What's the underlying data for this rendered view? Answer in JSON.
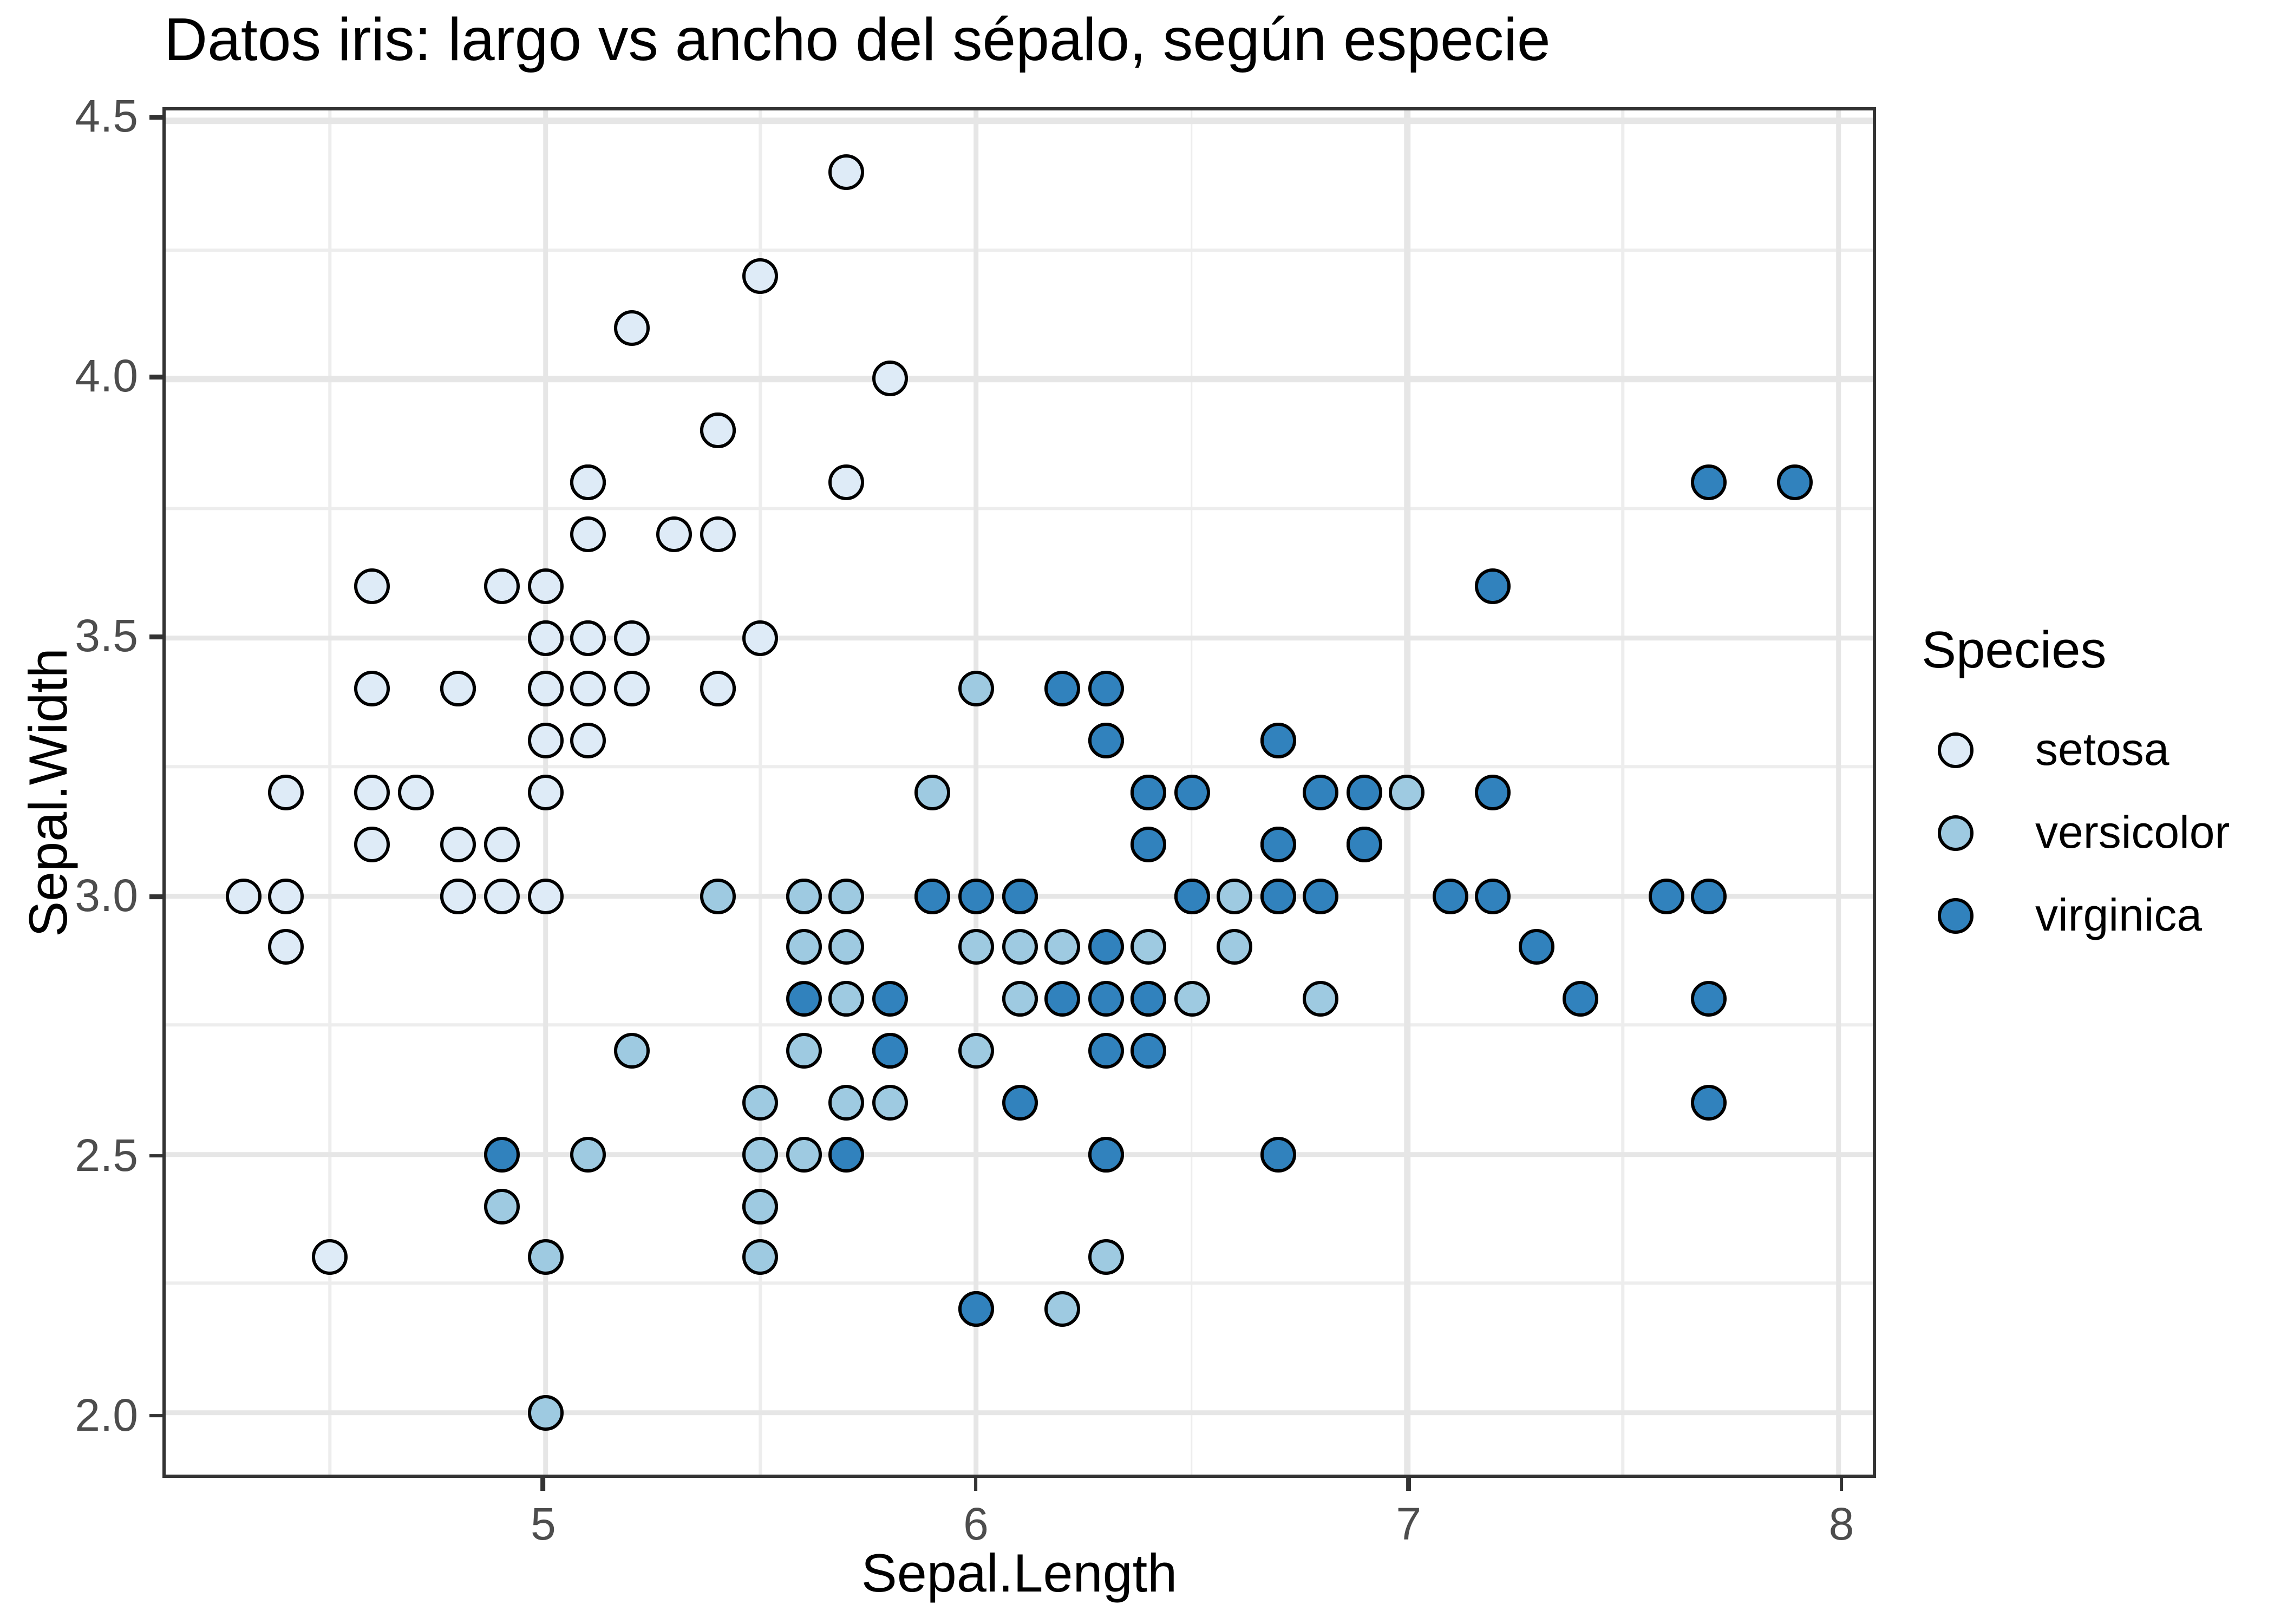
{
  "chart_data": {
    "type": "scatter",
    "title": "Datos iris: largo vs ancho del sépalo, según especie",
    "xlabel": "Sepal.Length",
    "ylabel": "Sepal.Width",
    "xlim": [
      4.12,
      8.08
    ],
    "ylim": [
      1.88,
      4.52
    ],
    "x_ticks": [
      5,
      6,
      7,
      8
    ],
    "x_tick_labels": [
      "5",
      "6",
      "7",
      "8"
    ],
    "y_ticks": [
      2.0,
      2.5,
      3.0,
      3.5,
      4.0,
      4.5
    ],
    "y_tick_labels": [
      "2.0",
      "2.5",
      "3.0",
      "3.5",
      "4.0",
      "4.5"
    ],
    "x_minor_ticks": [
      4.5,
      5.5,
      6.5,
      7.5
    ],
    "y_minor_ticks": [
      2.25,
      2.75,
      3.25,
      3.75,
      4.25
    ],
    "grid": true,
    "legend_position": "right",
    "series": [
      {
        "name": "setosa",
        "fill": "#DEEBF7",
        "points": [
          [
            5.1,
            3.5
          ],
          [
            4.9,
            3.0
          ],
          [
            4.7,
            3.2
          ],
          [
            4.6,
            3.1
          ],
          [
            5.0,
            3.6
          ],
          [
            5.4,
            3.9
          ],
          [
            4.6,
            3.4
          ],
          [
            5.0,
            3.4
          ],
          [
            4.4,
            2.9
          ],
          [
            4.9,
            3.1
          ],
          [
            5.4,
            3.7
          ],
          [
            4.8,
            3.4
          ],
          [
            4.8,
            3.0
          ],
          [
            4.3,
            3.0
          ],
          [
            5.8,
            4.0
          ],
          [
            5.7,
            4.4
          ],
          [
            5.4,
            3.9
          ],
          [
            5.1,
            3.5
          ],
          [
            5.7,
            3.8
          ],
          [
            5.1,
            3.8
          ],
          [
            5.4,
            3.4
          ],
          [
            5.1,
            3.7
          ],
          [
            4.6,
            3.6
          ],
          [
            5.1,
            3.3
          ],
          [
            4.8,
            3.4
          ],
          [
            5.0,
            3.0
          ],
          [
            5.0,
            3.4
          ],
          [
            5.2,
            3.5
          ],
          [
            5.2,
            3.4
          ],
          [
            4.7,
            3.2
          ],
          [
            4.8,
            3.1
          ],
          [
            5.4,
            3.4
          ],
          [
            5.2,
            4.1
          ],
          [
            5.5,
            4.2
          ],
          [
            4.9,
            3.1
          ],
          [
            5.0,
            3.2
          ],
          [
            5.5,
            3.5
          ],
          [
            4.9,
            3.6
          ],
          [
            4.4,
            3.0
          ],
          [
            5.1,
            3.4
          ],
          [
            5.0,
            3.5
          ],
          [
            4.5,
            2.3
          ],
          [
            4.4,
            3.2
          ],
          [
            5.0,
            3.5
          ],
          [
            5.1,
            3.8
          ],
          [
            4.8,
            3.0
          ],
          [
            5.1,
            3.8
          ],
          [
            4.6,
            3.2
          ],
          [
            5.3,
            3.7
          ],
          [
            5.0,
            3.3
          ]
        ]
      },
      {
        "name": "versicolor",
        "fill": "#9ECAE1",
        "points": [
          [
            7.0,
            3.2
          ],
          [
            6.4,
            3.2
          ],
          [
            6.9,
            3.1
          ],
          [
            5.5,
            2.3
          ],
          [
            6.5,
            2.8
          ],
          [
            5.7,
            2.8
          ],
          [
            6.3,
            3.3
          ],
          [
            4.9,
            2.4
          ],
          [
            6.6,
            2.9
          ],
          [
            5.2,
            2.7
          ],
          [
            5.0,
            2.0
          ],
          [
            5.9,
            3.0
          ],
          [
            6.0,
            2.2
          ],
          [
            6.1,
            2.9
          ],
          [
            5.6,
            2.9
          ],
          [
            6.7,
            3.1
          ],
          [
            5.6,
            3.0
          ],
          [
            5.8,
            2.7
          ],
          [
            6.2,
            2.2
          ],
          [
            5.6,
            2.5
          ],
          [
            5.9,
            3.2
          ],
          [
            6.1,
            2.8
          ],
          [
            6.3,
            2.5
          ],
          [
            6.1,
            2.8
          ],
          [
            6.4,
            2.9
          ],
          [
            6.6,
            3.0
          ],
          [
            6.8,
            2.8
          ],
          [
            6.7,
            3.0
          ],
          [
            6.0,
            2.9
          ],
          [
            5.7,
            2.6
          ],
          [
            5.5,
            2.4
          ],
          [
            5.5,
            2.4
          ],
          [
            5.8,
            2.7
          ],
          [
            6.0,
            2.7
          ],
          [
            5.4,
            3.0
          ],
          [
            6.0,
            3.4
          ],
          [
            6.7,
            3.1
          ],
          [
            6.3,
            2.3
          ],
          [
            5.6,
            3.0
          ],
          [
            5.5,
            2.5
          ],
          [
            5.5,
            2.6
          ],
          [
            6.1,
            3.0
          ],
          [
            5.8,
            2.6
          ],
          [
            5.0,
            2.3
          ],
          [
            5.6,
            2.7
          ],
          [
            5.7,
            3.0
          ],
          [
            5.7,
            2.9
          ],
          [
            6.2,
            2.9
          ],
          [
            5.1,
            2.5
          ],
          [
            5.7,
            2.8
          ]
        ]
      },
      {
        "name": "virginica",
        "fill": "#3182BD",
        "points": [
          [
            6.3,
            3.3
          ],
          [
            5.8,
            2.7
          ],
          [
            7.1,
            3.0
          ],
          [
            6.3,
            2.9
          ],
          [
            6.5,
            3.0
          ],
          [
            7.6,
            3.0
          ],
          [
            4.9,
            2.5
          ],
          [
            7.3,
            2.9
          ],
          [
            6.7,
            2.5
          ],
          [
            7.2,
            3.6
          ],
          [
            6.5,
            3.2
          ],
          [
            6.4,
            2.7
          ],
          [
            6.8,
            3.0
          ],
          [
            5.7,
            2.5
          ],
          [
            5.8,
            2.8
          ],
          [
            6.4,
            3.2
          ],
          [
            6.5,
            3.0
          ],
          [
            7.7,
            3.8
          ],
          [
            7.7,
            2.6
          ],
          [
            6.0,
            2.2
          ],
          [
            6.9,
            3.2
          ],
          [
            5.6,
            2.8
          ],
          [
            7.7,
            2.8
          ],
          [
            6.3,
            2.7
          ],
          [
            6.7,
            3.3
          ],
          [
            7.2,
            3.2
          ],
          [
            6.2,
            2.8
          ],
          [
            6.1,
            3.0
          ],
          [
            6.4,
            2.8
          ],
          [
            7.2,
            3.0
          ],
          [
            7.4,
            2.8
          ],
          [
            7.9,
            3.8
          ],
          [
            6.4,
            2.8
          ],
          [
            6.3,
            2.8
          ],
          [
            6.1,
            2.6
          ],
          [
            7.7,
            3.0
          ],
          [
            6.3,
            3.4
          ],
          [
            6.4,
            3.1
          ],
          [
            6.0,
            3.0
          ],
          [
            6.9,
            3.1
          ],
          [
            6.7,
            3.1
          ],
          [
            6.9,
            3.1
          ],
          [
            5.8,
            2.7
          ],
          [
            6.8,
            3.2
          ],
          [
            6.7,
            3.3
          ],
          [
            6.7,
            3.0
          ],
          [
            6.3,
            2.5
          ],
          [
            6.5,
            3.0
          ],
          [
            6.2,
            3.4
          ],
          [
            5.9,
            3.0
          ]
        ]
      }
    ]
  },
  "legend": {
    "title": "Species",
    "items": [
      {
        "label": "setosa",
        "fill": "#DEEBF7"
      },
      {
        "label": "versicolor",
        "fill": "#9ECAE1"
      },
      {
        "label": "virginica",
        "fill": "#3182BD"
      }
    ]
  },
  "colors": {
    "background": "#FFFFFF",
    "panel_border": "#333333",
    "grid_major": "#E6E6E6",
    "grid_minor": "#EDEDED",
    "tick_mark": "#333333",
    "tick_label": "#4D4D4D",
    "text": "#000000",
    "point_stroke": "#000000"
  }
}
